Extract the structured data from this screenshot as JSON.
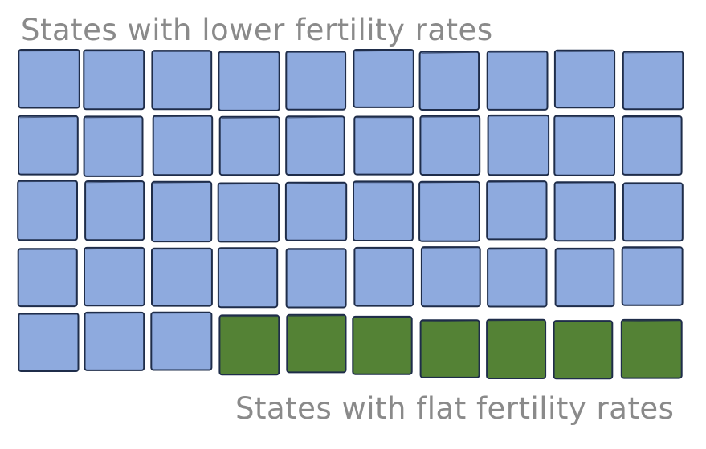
{
  "chart_data": {
    "type": "waffle",
    "rows": 5,
    "columns": 10,
    "categories": [
      "States with lower fertility rates",
      "States with flat fertility rates"
    ],
    "values": [
      43,
      7
    ],
    "colors": {
      "lower": "#8eaade",
      "flat": "#548235",
      "outline": "#1f2d4a"
    },
    "labels": {
      "top": "States with lower fertility rates",
      "bottom": "States with flat fertility rates"
    }
  }
}
